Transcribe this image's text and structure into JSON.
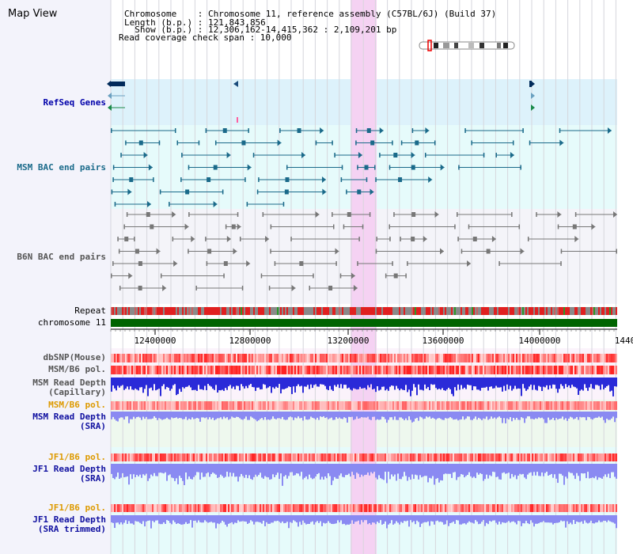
{
  "title": "Map View",
  "info": {
    "line1": "Chromosome    : Chromosome 11, reference assembly (C57BL/6J) (Build 37)",
    "line2": "Length (b.p.) : 121,843,856",
    "line3": "  Show (b.p.) : 12,306,162-14,415,362 : 2,109,201 bp",
    "line4": "Read coverage check span : 10,000"
  },
  "tracks": {
    "refseq": "RefSeq Genes",
    "msm_bac": "MSM BAC end pairs",
    "b6n_bac": "B6N BAC end pairs",
    "repeat": "Repeat",
    "chromosome": "chromosome 11",
    "dbsnp": "dbSNP(Mouse)",
    "msm_b6_pol_1": "MSM/B6 pol.",
    "msm_depth_cap": "MSM Read Depth\n(Capillary)",
    "msm_b6_pol_2": "MSM/B6 pol.",
    "msm_depth_sra": "MSM Read Depth\n(SRA)",
    "jf1_b6_pol_1": "JF1/B6 pol.",
    "jf1_depth_sra": "JF1 Read Depth\n(SRA)",
    "jf1_b6_pol_2": "JF1/B6 pol.",
    "jf1_depth_trim": "JF1 Read Depth\n(SRA trimmed)"
  },
  "axis": {
    "start": 12306162,
    "end": 14415362,
    "ticks": [
      "12400000",
      "12800000",
      "13200000",
      "13600000",
      "14000000",
      "1440"
    ]
  },
  "colors": {
    "highlight": "#f5d2f3",
    "refseq_bg": "#ddf2fb",
    "msm_bg": "#e6fbfb",
    "b6n_bg": "#f4f4f9",
    "chromosome": "#006400",
    "msm_depth": "#2a2ad8",
    "sra_depth": "#8a8af2"
  }
}
